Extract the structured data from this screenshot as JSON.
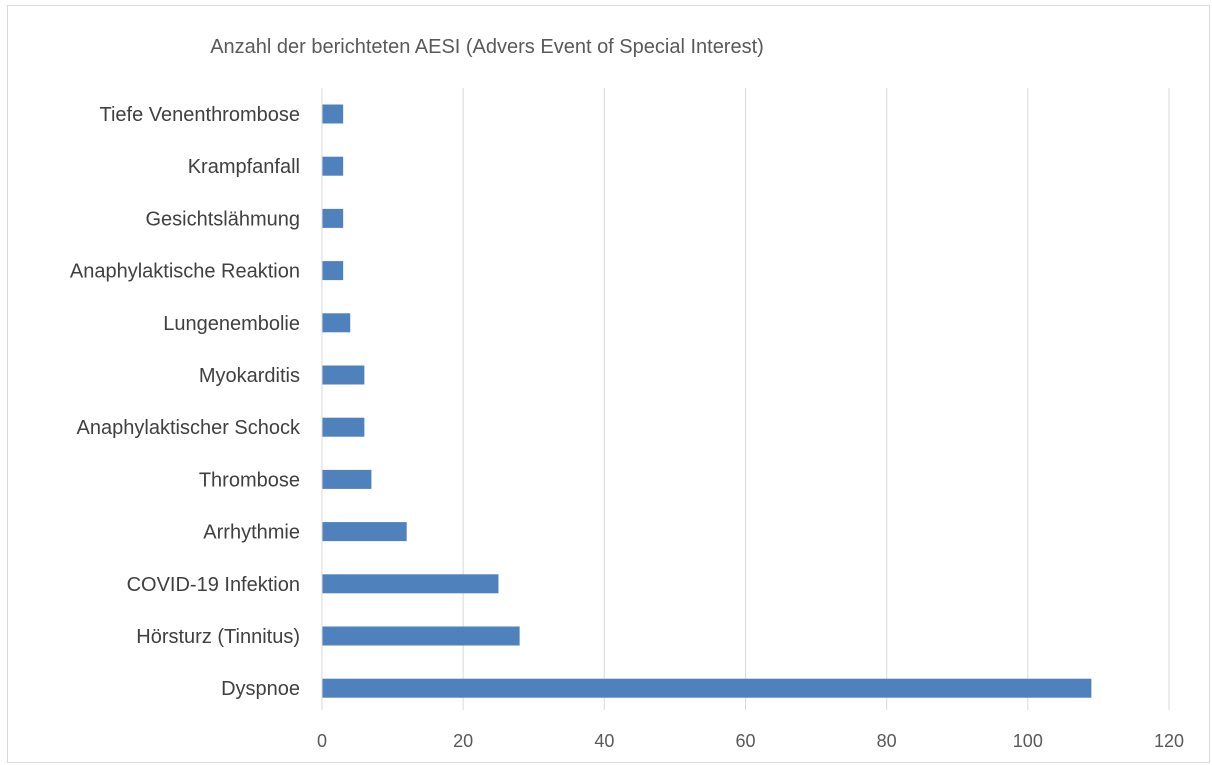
{
  "chart_data": {
    "type": "bar",
    "orientation": "horizontal",
    "title": "Anzahl der berichteten AESI (Advers Event of Special Interest)",
    "xlabel": "",
    "ylabel": "",
    "categories": [
      "Tiefe Venenthrombose",
      "Krampfanfall",
      "Gesichtslähmung",
      "Anaphylaktische Reaktion",
      "Lungenembolie",
      "Myokarditis",
      "Anaphylaktischer Schock",
      "Thrombose",
      "Arrhythmie",
      "COVID-19 Infektion",
      "Hörsturz (Tinnitus)",
      "Dyspnoe"
    ],
    "values": [
      3,
      3,
      3,
      3,
      4,
      6,
      6,
      7,
      12,
      25,
      28,
      109
    ],
    "xlim": [
      0,
      120
    ],
    "xticks": [
      0,
      20,
      40,
      60,
      80,
      100,
      120
    ],
    "grid": "vertical",
    "legend": "none",
    "bar_color": "#4f81bd",
    "grid_color": "#d9d9d9"
  }
}
